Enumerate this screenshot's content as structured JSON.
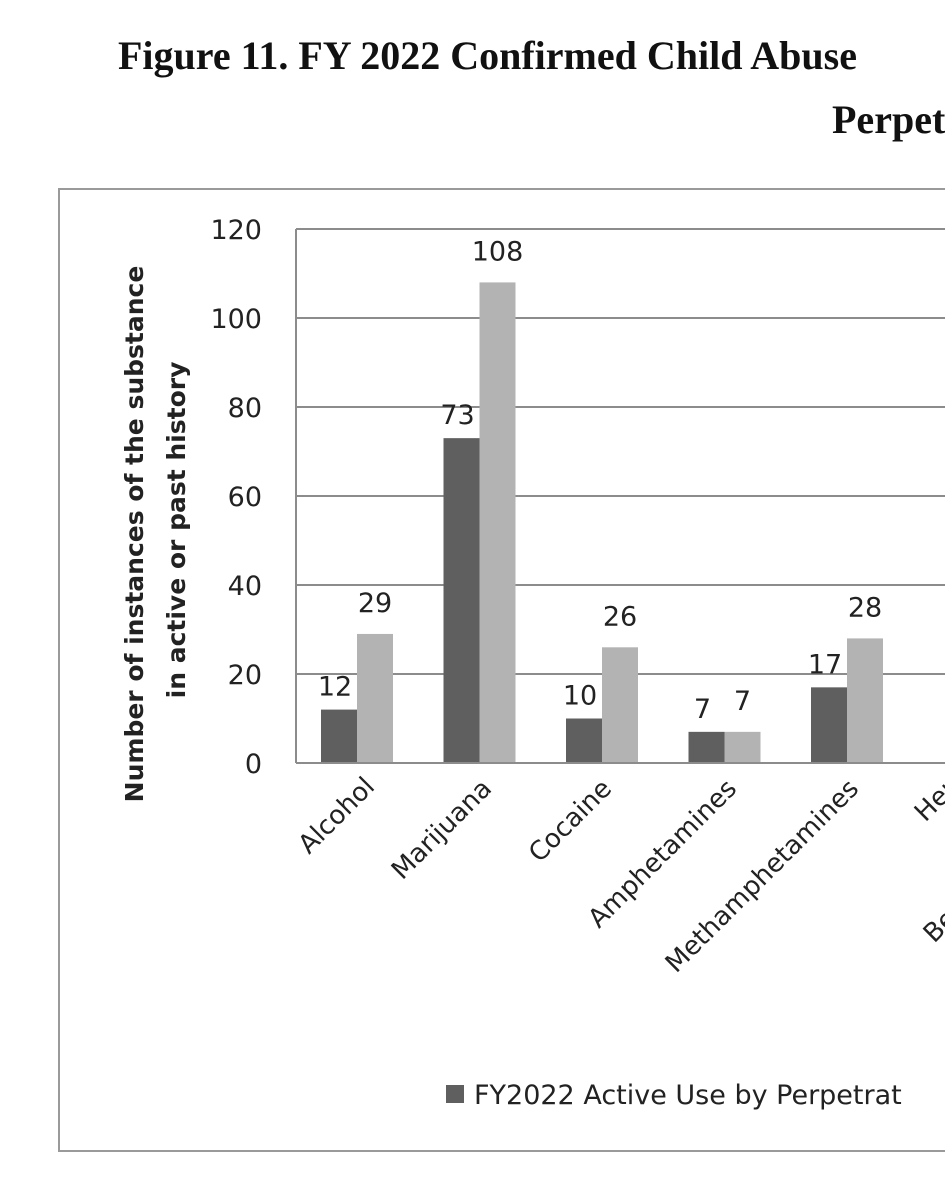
{
  "title": {
    "line1": "Figure 11. FY 2022 Confirmed Child Abuse",
    "line2": "Perpet"
  },
  "chart_data": {
    "type": "bar",
    "ylabel_line1": "Number of instances of the substance",
    "ylabel_line2": "in active or past history",
    "ylim": [
      0,
      120
    ],
    "yticks": [
      0,
      20,
      40,
      60,
      80,
      100,
      120
    ],
    "grid": true,
    "categories": [
      "Alcohol",
      "Marijuana",
      "Cocaine",
      "Amphetamines",
      "Methamphetamines",
      "Her",
      "Be"
    ],
    "series": [
      {
        "name": "FY2022 Active Use by Perpetrat",
        "color": "#5f5f5f",
        "values": [
          12,
          73,
          10,
          7,
          17,
          null,
          null
        ],
        "labels": [
          "12",
          "73",
          "10",
          "7",
          "17",
          "",
          ""
        ]
      },
      {
        "color": "#b3b3b3",
        "values": [
          29,
          108,
          26,
          7,
          28,
          null,
          null
        ],
        "labels": [
          "29",
          "108",
          "26",
          "7",
          "28",
          "",
          ""
        ]
      }
    ],
    "legend_position": "bottom"
  }
}
